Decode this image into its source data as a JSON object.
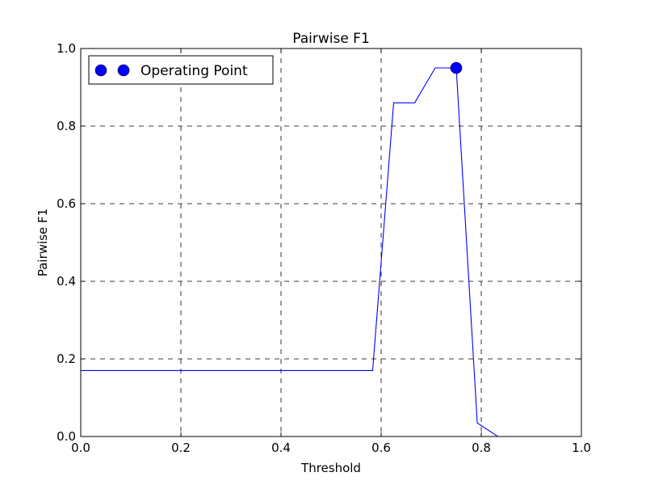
{
  "chart_data": {
    "type": "line",
    "title": "Pairwise F1",
    "xlabel": "Threshold",
    "ylabel": "Pairwise F1",
    "xlim": [
      0.0,
      1.0
    ],
    "ylim": [
      0.0,
      1.0
    ],
    "x_ticks": [
      0.0,
      0.2,
      0.4,
      0.6,
      0.8,
      1.0
    ],
    "x_tick_labels": [
      "0.0",
      "0.2",
      "0.4",
      "0.6",
      "0.8",
      "1.0"
    ],
    "y_ticks": [
      0.0,
      0.2,
      0.4,
      0.6,
      0.8,
      1.0
    ],
    "y_tick_labels": [
      "0.0",
      "0.2",
      "0.4",
      "0.6",
      "0.8",
      "1.0"
    ],
    "grid": true,
    "legend_position": "top-left",
    "series": [
      {
        "kind": "line",
        "color": "#0000ff",
        "x": [
          0.0,
          0.583,
          0.625,
          0.667,
          0.708,
          0.75,
          0.792,
          0.833,
          1.0
        ],
        "y": [
          0.17,
          0.17,
          0.86,
          0.86,
          0.95,
          0.95,
          0.035,
          0.0,
          0.0
        ]
      },
      {
        "kind": "point",
        "name": "Operating Point",
        "color": "#0000ff",
        "x": [
          0.75
        ],
        "y": [
          0.95
        ]
      }
    ]
  }
}
